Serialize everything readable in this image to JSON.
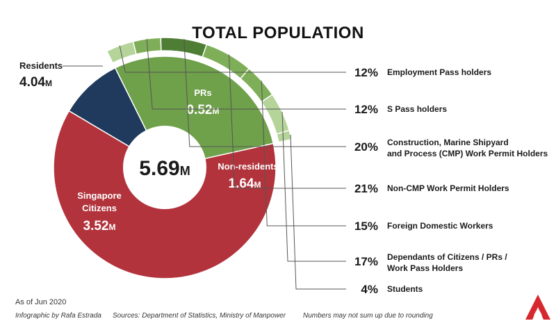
{
  "title": "TOTAL POPULATION",
  "colors": {
    "citizens": "#b2333c",
    "prs": "#1f3a5c",
    "non_residents": "#6fa04a",
    "ring_light": "#b5d49a",
    "ring_mid": "#7fae58",
    "ring_dark": "#4e7d34",
    "center": "#ffffff",
    "leader": "#555555",
    "logo": "#d6282f"
  },
  "chart_data": {
    "type": "pie",
    "total": {
      "value": "5.69",
      "unit": "M"
    },
    "residents": {
      "label": "Residents",
      "value": "4.04",
      "unit": "M"
    },
    "slices": [
      {
        "name": "Singapore Citizens",
        "line1": "Singapore",
        "line2": "Citizens",
        "value": 3.52,
        "display": "3.52",
        "unit": "M"
      },
      {
        "name": "PRs",
        "line1": "PRs",
        "value": 0.52,
        "display": "0.52",
        "unit": "M"
      },
      {
        "name": "Non-residents",
        "line1": "Non-residents",
        "value": 1.64,
        "display": "1.64",
        "unit": "M"
      }
    ],
    "non_resident_breakdown": [
      {
        "pct": 12,
        "pct_label": "12%",
        "lines": [
          "Employment Pass holders"
        ]
      },
      {
        "pct": 12,
        "pct_label": "12%",
        "lines": [
          "S Pass holders"
        ]
      },
      {
        "pct": 20,
        "pct_label": "20%",
        "lines": [
          "Construction, Marine Shipyard",
          "and Process (CMP) Work Permit Holders"
        ]
      },
      {
        "pct": 21,
        "pct_label": "21%",
        "lines": [
          "Non-CMP Work Permit Holders"
        ]
      },
      {
        "pct": 15,
        "pct_label": "15%",
        "lines": [
          "Foreign Domestic Workers"
        ]
      },
      {
        "pct": 17,
        "pct_label": "17%",
        "lines": [
          "Dependants of Citizens / PRs /",
          "Work Pass Holders"
        ]
      },
      {
        "pct": 4,
        "pct_label": "4%",
        "lines": [
          "Students"
        ]
      }
    ]
  },
  "footer": {
    "as_of": "As of Jun 2020",
    "credit": "Infographic by Rafa Estrada",
    "sources": "Sources: Department of Statistics, Ministry of Manpower",
    "note": "Numbers may not sum up due to rounding"
  },
  "logo": {
    "icon": "broadcaster-logo-icon"
  }
}
